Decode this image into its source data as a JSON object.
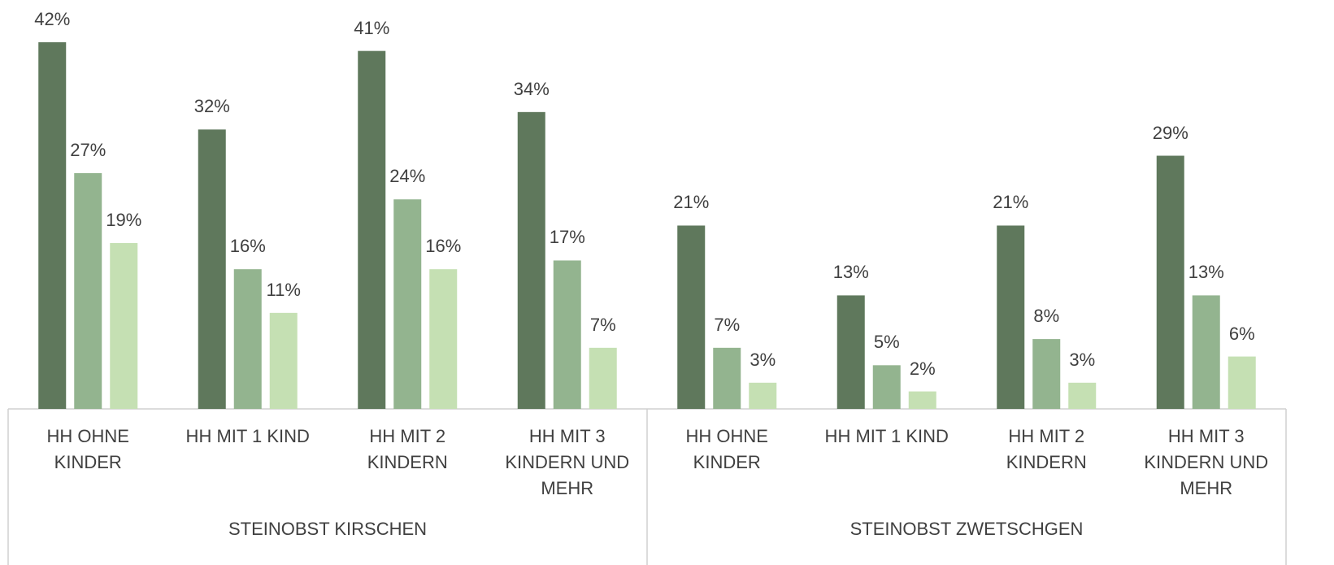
{
  "chart_data": {
    "type": "bar",
    "groups": [
      {
        "label": "STEINOBST KIRSCHEN",
        "categories": [
          "HH OHNE\nKINDER",
          "HH MIT 1 KIND",
          "HH MIT 2\nKINDERN",
          "HH MIT 3\nKINDERN UND\nMEHR"
        ]
      },
      {
        "label": "STEINOBST ZWETSCHGEN",
        "categories": [
          "HH OHNE\nKINDER",
          "HH MIT 1 KIND",
          "HH MIT 2\nKINDERN",
          "HH MIT 3\nKINDERN UND\nMEHR"
        ]
      }
    ],
    "series": [
      {
        "color": "#5f785c",
        "values": [
          42,
          32,
          41,
          34,
          21,
          13,
          21,
          29
        ],
        "value_labels": [
          "42%",
          "32%",
          "41%",
          "34%",
          "21%",
          "13%",
          "21%",
          "29%"
        ]
      },
      {
        "color": "#93b48f",
        "values": [
          27,
          16,
          24,
          17,
          7,
          5,
          8,
          13
        ],
        "value_labels": [
          "27%",
          "16%",
          "24%",
          "17%",
          "7%",
          "5%",
          "8%",
          "13%"
        ]
      },
      {
        "color": "#c5e0b3",
        "values": [
          19,
          11,
          16,
          7,
          3,
          2,
          3,
          6
        ],
        "value_labels": [
          "19%",
          "11%",
          "16%",
          "7%",
          "3%",
          "2%",
          "3%",
          "6%"
        ]
      }
    ]
  }
}
